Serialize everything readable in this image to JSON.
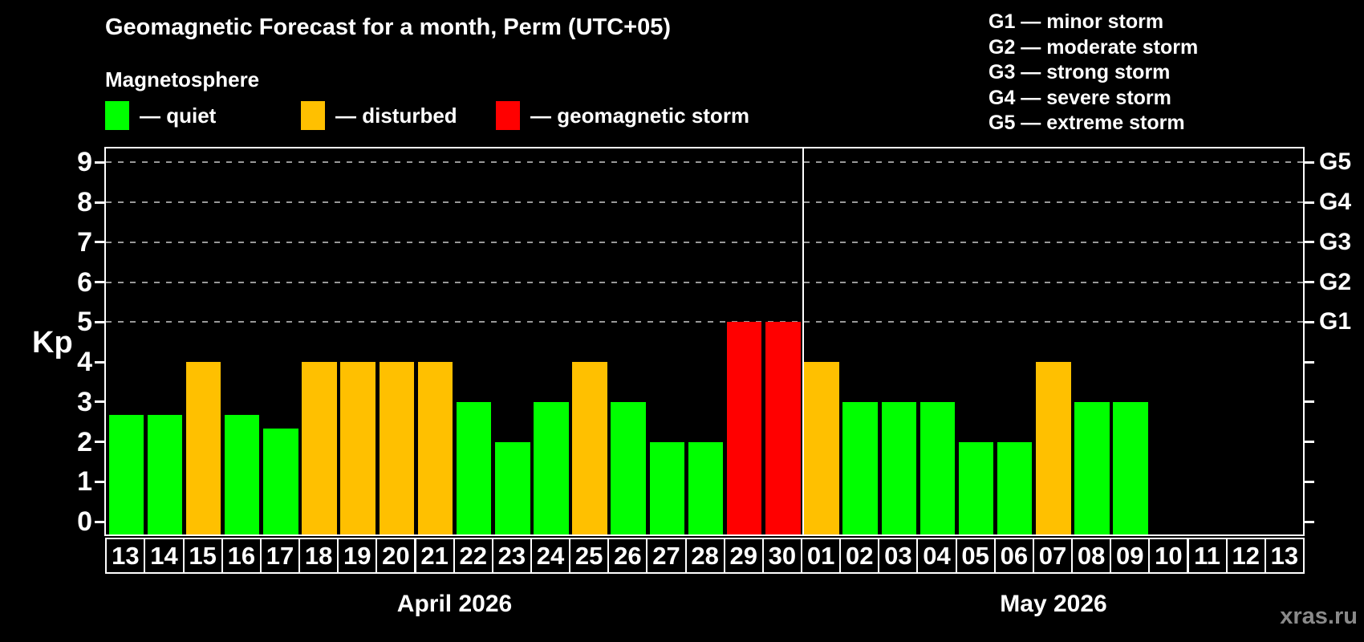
{
  "title": "Geomagnetic Forecast for a month, Perm (UTC+05)",
  "subtitle": "Magnetosphere",
  "legend": {
    "items": [
      {
        "key": "quiet",
        "label": "— quiet",
        "color": "#00ff00"
      },
      {
        "key": "disturbed",
        "label": "— disturbed",
        "color": "#ffc000"
      },
      {
        "key": "storm",
        "label": "— geomagnetic storm",
        "color": "#ff0000"
      }
    ]
  },
  "g_legend": [
    "G1 — minor storm",
    "G2 — moderate storm",
    "G3 — strong storm",
    "G4 — severe storm",
    "G5 — extreme storm"
  ],
  "watermark": "xras.ru",
  "chart_data": {
    "type": "bar",
    "ylabel": "Kp",
    "ylim": [
      0,
      9.6
    ],
    "yticks": [
      0,
      1,
      2,
      3,
      4,
      5,
      6,
      7,
      8,
      9
    ],
    "gridlines_at": [
      5,
      6,
      7,
      8,
      9
    ],
    "grid_color": "#999999",
    "right_axis_labels": {
      "5": "G1",
      "6": "G2",
      "7": "G3",
      "8": "G4",
      "9": "G5"
    },
    "legend_position": "top",
    "months": [
      {
        "label": "April 2026",
        "days": 18
      },
      {
        "label": "May 2026",
        "days": 13
      }
    ],
    "x": [
      "13",
      "14",
      "15",
      "16",
      "17",
      "18",
      "19",
      "20",
      "21",
      "22",
      "23",
      "24",
      "25",
      "26",
      "27",
      "28",
      "29",
      "30",
      "01",
      "02",
      "03",
      "04",
      "05",
      "06",
      "07",
      "08",
      "09",
      "10",
      "11",
      "12",
      "13"
    ],
    "values": [
      2.67,
      2.67,
      4,
      2.67,
      2.33,
      4,
      4,
      4,
      4,
      3,
      2,
      3,
      4,
      3,
      2,
      2,
      5,
      5,
      4,
      3,
      3,
      3,
      2,
      2,
      4,
      3,
      3,
      null,
      null,
      null,
      null
    ],
    "status": [
      "quiet",
      "quiet",
      "disturbed",
      "quiet",
      "quiet",
      "disturbed",
      "disturbed",
      "disturbed",
      "disturbed",
      "quiet",
      "quiet",
      "quiet",
      "disturbed",
      "quiet",
      "quiet",
      "quiet",
      "storm",
      "storm",
      "disturbed",
      "quiet",
      "quiet",
      "quiet",
      "quiet",
      "quiet",
      "disturbed",
      "quiet",
      "quiet",
      null,
      null,
      null,
      null
    ],
    "colors": {
      "quiet": "#00ff00",
      "disturbed": "#ffc000",
      "storm": "#ff0000"
    }
  }
}
